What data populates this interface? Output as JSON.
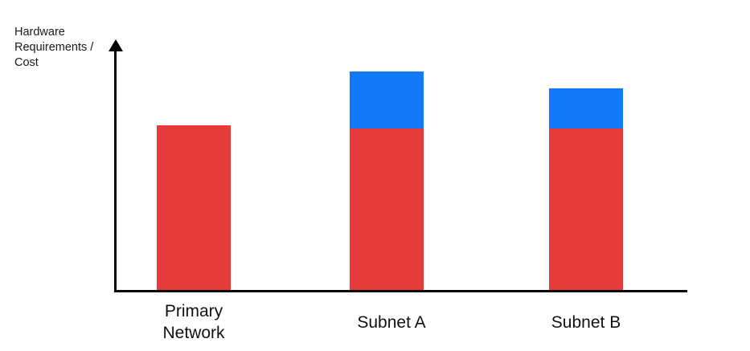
{
  "page": {
    "background": "#ffffff",
    "text_color": "#111111",
    "axis_color": "#000000"
  },
  "chart_data": {
    "type": "bar",
    "stacked": true,
    "title": "",
    "xlabel": "",
    "ylabel": "Hardware Requirements / Cost",
    "ylabel_lines": [
      "Hardware",
      "Requirements /",
      "Cost"
    ],
    "categories": [
      "Primary Network",
      "Subnet A",
      "Subnet B"
    ],
    "series": [
      {
        "name": "red-base-segment",
        "color": "#E53B3B",
        "values": [
          205,
          201,
          201
        ]
      },
      {
        "name": "blue-extra-segment",
        "color": "#127AF8",
        "values": [
          0,
          71,
          50
        ]
      }
    ],
    "units": "relative height (y-axis has no numeric ticks)",
    "y_axis_arrow": true,
    "grid": false,
    "legend": false
  }
}
